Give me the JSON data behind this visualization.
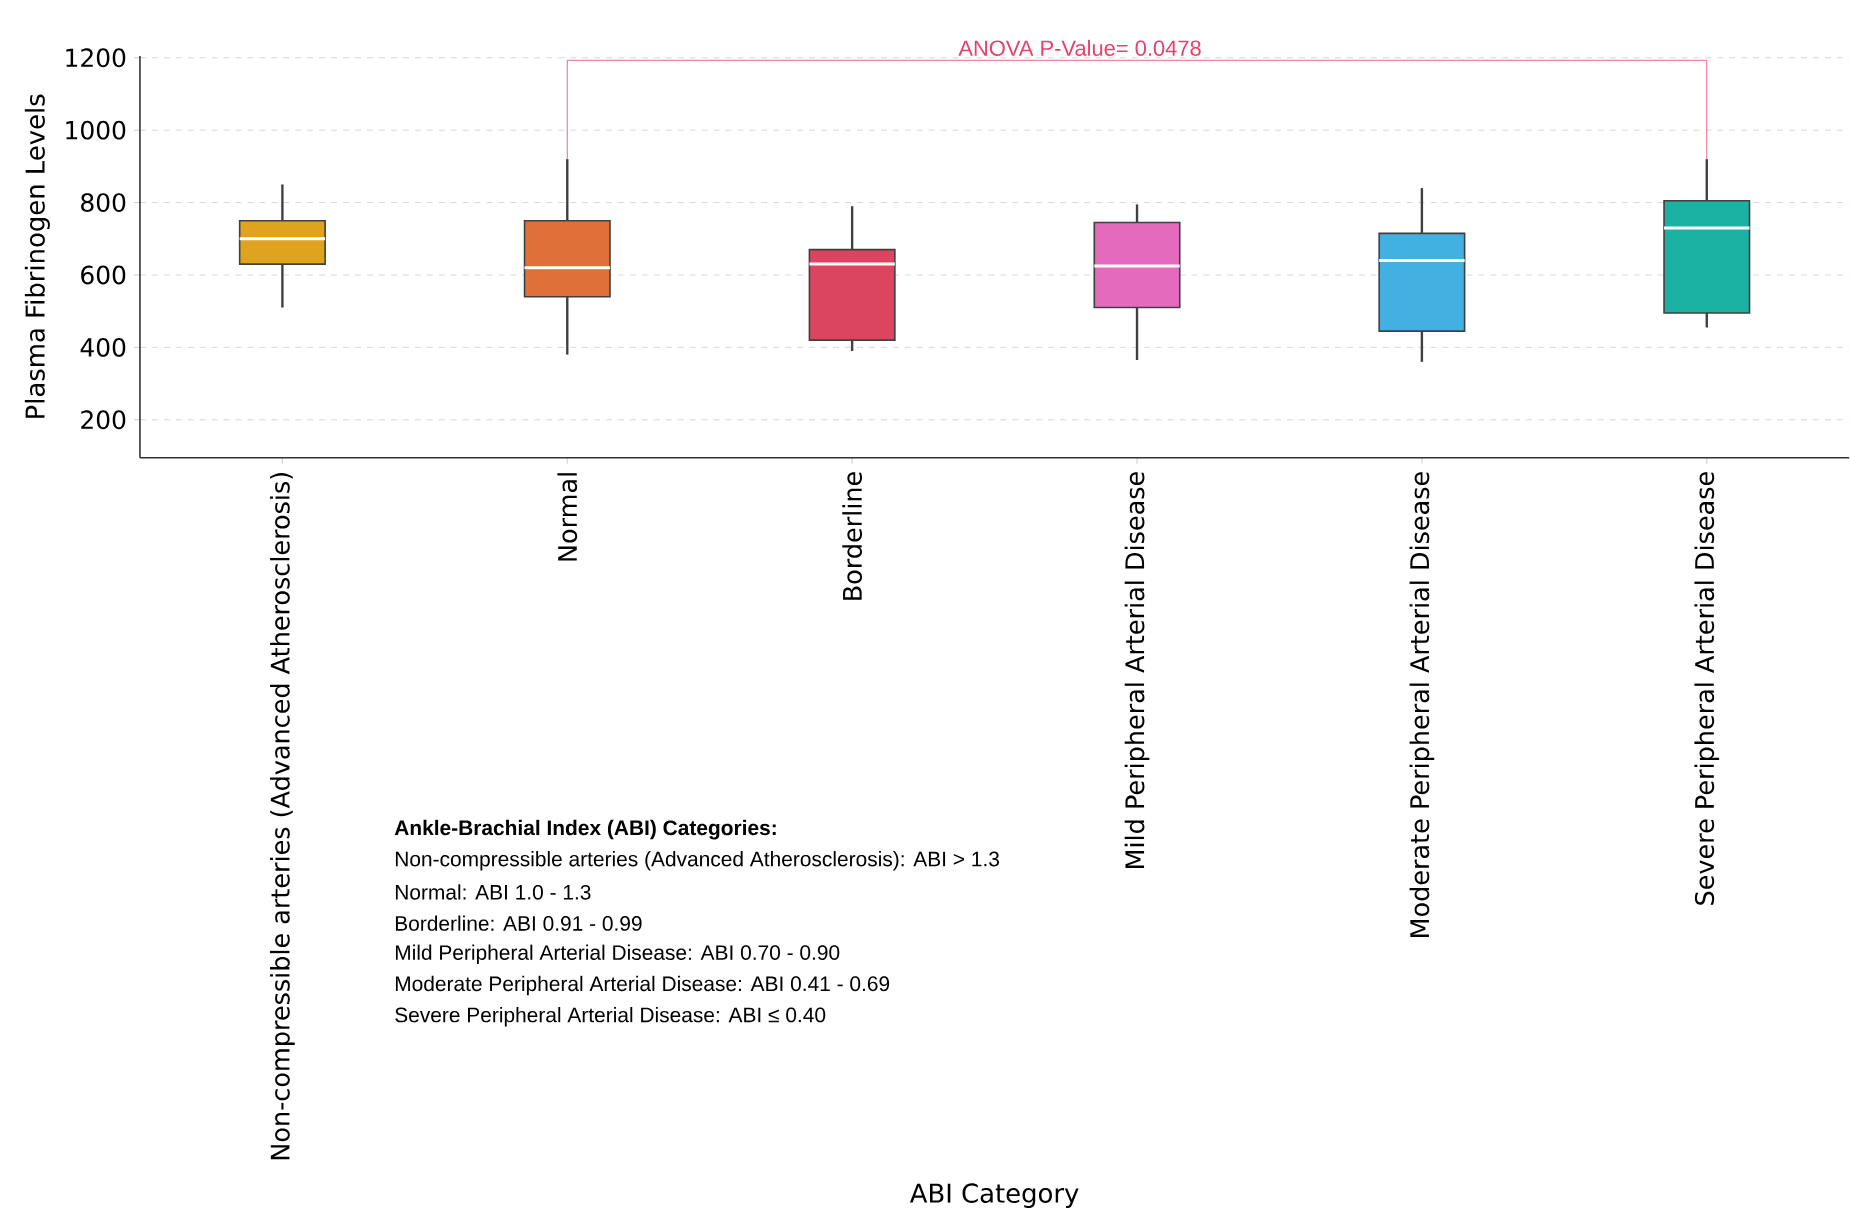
{
  "chart_data": {
    "type": "box",
    "categories": [
      "Non-compressible arteries (Advanced Atherosclerosis)",
      "Normal",
      "Borderline",
      "Mild Peripheral Arterial Disease",
      "Moderate Peripheral Arterial Disease",
      "Severe Peripheral Arterial Disease"
    ],
    "colors": [
      "#e0a31e",
      "#e0703a",
      "#dc4560",
      "#e46abd",
      "#42b0e0",
      "#1bb2a3"
    ],
    "boxes": [
      {
        "low": 510,
        "q1": 630,
        "median": 700,
        "q3": 750,
        "high": 850
      },
      {
        "low": 380,
        "q1": 540,
        "median": 620,
        "q3": 750,
        "high": 920
      },
      {
        "low": 390,
        "q1": 420,
        "median": 630,
        "q3": 670,
        "high": 790
      },
      {
        "low": 365,
        "q1": 510,
        "median": 625,
        "q3": 745,
        "high": 795
      },
      {
        "low": 360,
        "q1": 445,
        "median": 640,
        "q3": 715,
        "high": 840
      },
      {
        "low": 455,
        "q1": 495,
        "median": 730,
        "q3": 805,
        "high": 920
      }
    ],
    "xlabel": "ABI Category",
    "ylabel": "Plasma Fibrinogen Levels",
    "ylim": [
      95,
      1205
    ],
    "yticks": [
      200,
      400,
      600,
      800,
      1000,
      1200
    ],
    "grid": "y",
    "annotations": [
      "ANOVA P-Value= 0.0478",
      "Ankle-Brachial Index (ABI) Categories:",
      "Non-compressible arteries (Advanced Atherosclerosis): ABI > 1.3",
      "Normal: ABI 1.0 - 1.3",
      "Borderline: ABI 0.91 - 0.99",
      "Mild Peripheral Arterial Disease: ABI 0.70 - 0.90",
      "Moderate Peripheral Arterial Disease: ABI 0.41 - 0.69",
      "Severe Peripheral Arterial Disease: ABI ≤ 0.40"
    ]
  }
}
